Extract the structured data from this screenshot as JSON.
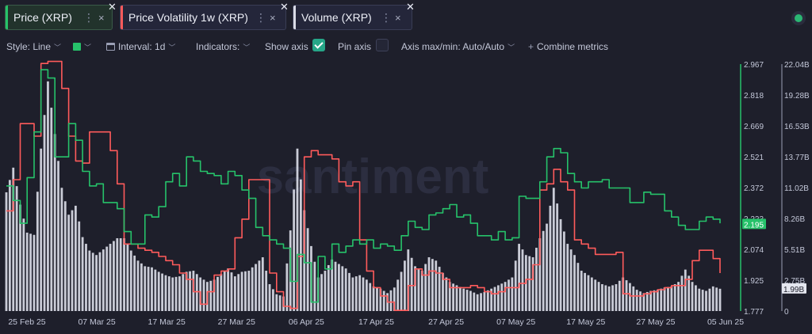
{
  "tabs": [
    {
      "label": "Price (XRP)",
      "color": "#26c26a",
      "active": true
    },
    {
      "label": "Price Volatility 1w (XRP)",
      "color": "#ff5b5b",
      "active": false
    },
    {
      "label": "Volume (XRP)",
      "color": "#d9dbe6",
      "active": false
    }
  ],
  "toolbar": {
    "style_label": "Style: Line",
    "interval_label": "Interval: 1d",
    "indicators_label": "Indicators:",
    "show_axis_label": "Show axis",
    "show_axis_checked": true,
    "pin_axis_label": "Pin axis",
    "pin_axis_checked": false,
    "axis_minmax_label": "Axis max/min: Auto/Auto",
    "combine_label": "Combine metrics"
  },
  "watermark": "santiment",
  "chart_data": {
    "type": "line",
    "x_tick_labels": [
      "25 Feb 25",
      "07 Mar 25",
      "17 Mar 25",
      "27 Mar 25",
      "06 Apr 25",
      "17 Apr 25",
      "27 Apr 25",
      "07 May 25",
      "17 May 25",
      "27 May 25",
      "05 Jun 25"
    ],
    "price_axis": {
      "ticks": [
        "2.967",
        "2.818",
        "2.669",
        "2.521",
        "2.372",
        "2.223",
        "2.074",
        "1.925",
        "1.777"
      ],
      "range": [
        1.777,
        2.967
      ],
      "current_label": "2.195",
      "color": "#26c26a"
    },
    "volume_axis": {
      "ticks": [
        "22.04B",
        "19.28B",
        "16.53B",
        "13.77B",
        "11.02B",
        "8.26B",
        "5.51B",
        "2.75B",
        "0"
      ],
      "range": [
        0,
        22.04
      ],
      "unit": "B",
      "current_label": "1.99B",
      "color": "#d9dbe6"
    },
    "series": [
      {
        "name": "Price (XRP)",
        "color": "#26c26a",
        "axis": "price",
        "values": [
          2.38,
          2.31,
          2.2,
          2.42,
          2.64,
          2.94,
          2.9,
          2.52,
          2.52,
          2.68,
          2.6,
          2.45,
          2.38,
          2.39,
          2.3,
          2.3,
          2.27,
          2.16,
          2.1,
          2.1,
          2.24,
          2.23,
          2.28,
          2.4,
          2.44,
          2.38,
          2.52,
          2.5,
          2.45,
          2.44,
          2.43,
          2.39,
          2.45,
          2.43,
          2.36,
          2.32,
          2.18,
          2.14,
          2.12,
          2.1,
          2.08,
          1.92,
          2.05,
          2.01,
          1.82,
          2.04,
          1.98,
          2.1,
          2.06,
          2.09,
          2.12,
          2.1,
          2.12,
          2.08,
          2.1,
          2.09,
          2.07,
          2.14,
          2.21,
          2.18,
          2.17,
          2.24,
          2.25,
          2.27,
          2.29,
          2.23,
          2.24,
          2.2,
          2.14,
          2.14,
          2.12,
          2.16,
          2.12,
          2.13,
          2.33,
          2.32,
          2.32,
          2.4,
          2.52,
          2.56,
          2.54,
          2.44,
          2.4,
          2.37,
          2.4,
          2.4,
          2.41,
          2.37,
          2.37,
          2.37,
          2.3,
          2.3,
          2.35,
          2.34,
          2.34,
          2.26,
          2.23,
          2.19,
          2.17,
          2.17,
          2.21,
          2.23,
          2.22,
          2.2
        ]
      },
      {
        "name": "Price Volatility 1w (XRP)",
        "color": "#ff5b5b",
        "axis": "price",
        "values": [
          2.26,
          2.41,
          2.68,
          2.68,
          2.62,
          2.97,
          2.98,
          2.98,
          2.85,
          2.62,
          2.5,
          2.49,
          2.64,
          2.64,
          2.64,
          2.55,
          2.39,
          2.1,
          2.1,
          2.08,
          2.07,
          2.06,
          2.04,
          2.02,
          2.0,
          1.96,
          1.93,
          1.87,
          1.81,
          1.87,
          1.95,
          1.97,
          1.98,
          2.13,
          2.22,
          2.41,
          2.41,
          2.41,
          1.96,
          1.87,
          1.8,
          1.79,
          2.04,
          2.52,
          2.55,
          2.53,
          2.53,
          2.51,
          2.4,
          2.38,
          2.4,
          2.12,
          1.97,
          1.89,
          1.85,
          1.82,
          1.78,
          1.78,
          1.9,
          1.98,
          1.95,
          1.97,
          1.96,
          1.93,
          1.89,
          1.89,
          1.89,
          1.9,
          1.89,
          1.87,
          1.86,
          1.87,
          1.89,
          1.89,
          1.91,
          1.93,
          2.0,
          2.36,
          2.39,
          2.46,
          2.4,
          2.36,
          2.12,
          2.1,
          2.08,
          2.05,
          2.05,
          2.05,
          2.06,
          1.86,
          1.85,
          1.85,
          1.86,
          1.87,
          1.88,
          1.89,
          1.9,
          1.9,
          1.93,
          2.02,
          2.07,
          2.07,
          2.03,
          1.96
        ]
      },
      {
        "name": "Volume (XRP)",
        "color": "#d9dbe6",
        "axis": "volume",
        "values": [
          10.6,
          12.8,
          9.5,
          7.0,
          6.8,
          14.5,
          20.5,
          15.8,
          11.0,
          8.6,
          9.4,
          6.6,
          5.4,
          5.0,
          5.5,
          6.0,
          6.5,
          6.5,
          5.4,
          4.5,
          4.0,
          3.9,
          3.5,
          3.2,
          3.0,
          3.1,
          3.5,
          3.6,
          3.0,
          2.6,
          2.8,
          3.3,
          3.8,
          3.1,
          3.5,
          3.6,
          4.2,
          4.8,
          2.4,
          1.5,
          1.3,
          7.2,
          14.5,
          9.0,
          5.8,
          3.0,
          3.6,
          4.6,
          4.2,
          3.8,
          3.0,
          3.2,
          2.8,
          2.2,
          2.0,
          1.6,
          2.1,
          3.5,
          5.5,
          4.0,
          3.6,
          4.8,
          4.5,
          3.4,
          2.6,
          2.3,
          2.0,
          1.8,
          1.5,
          1.7,
          2.0,
          2.3,
          2.6,
          3.0,
          6.0,
          5.0,
          4.8,
          6.5,
          7.8,
          11.0,
          8.2,
          6.0,
          5.0,
          3.6,
          3.2,
          2.8,
          2.4,
          2.2,
          2.4,
          3.0,
          2.5,
          1.9,
          1.6,
          1.8,
          1.9,
          2.1,
          2.2,
          2.6,
          3.7,
          2.6,
          2.0,
          1.8,
          2.2,
          1.99
        ]
      }
    ]
  }
}
